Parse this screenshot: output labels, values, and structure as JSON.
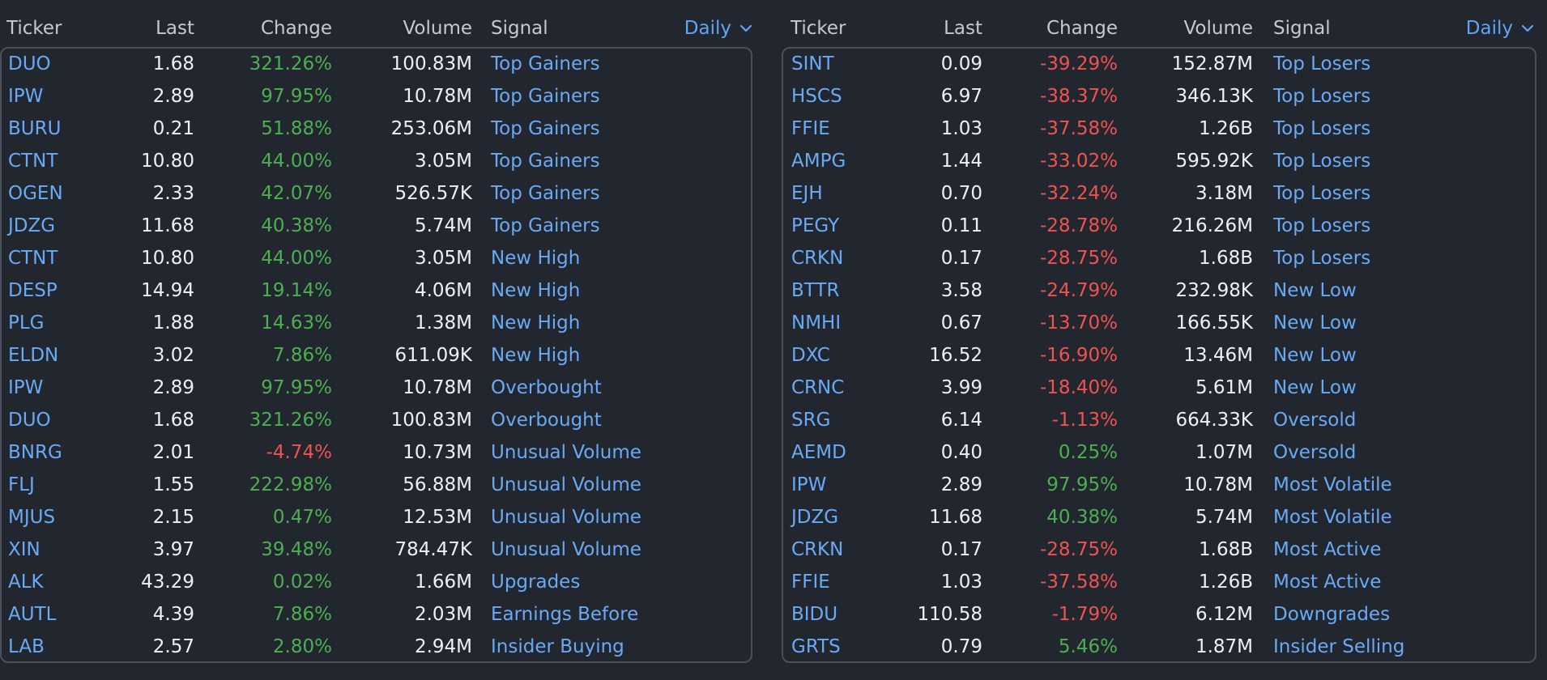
{
  "colors": {
    "background": "#22262f",
    "link": "#6aaaf4",
    "positive": "#4caf50",
    "negative": "#ef5350",
    "header": "#c5c9d1",
    "border": "#4a4f59"
  },
  "left": {
    "headers": {
      "ticker": "Ticker",
      "last": "Last",
      "change": "Change",
      "volume": "Volume",
      "signal": "Signal"
    },
    "period": "Daily",
    "rows": [
      {
        "ticker": "DUO",
        "last": "1.68",
        "change": "321.26%",
        "volume": "100.83M",
        "signal": "Top Gainers",
        "dir": "up"
      },
      {
        "ticker": "IPW",
        "last": "2.89",
        "change": "97.95%",
        "volume": "10.78M",
        "signal": "Top Gainers",
        "dir": "up"
      },
      {
        "ticker": "BURU",
        "last": "0.21",
        "change": "51.88%",
        "volume": "253.06M",
        "signal": "Top Gainers",
        "dir": "up"
      },
      {
        "ticker": "CTNT",
        "last": "10.80",
        "change": "44.00%",
        "volume": "3.05M",
        "signal": "Top Gainers",
        "dir": "up"
      },
      {
        "ticker": "OGEN",
        "last": "2.33",
        "change": "42.07%",
        "volume": "526.57K",
        "signal": "Top Gainers",
        "dir": "up"
      },
      {
        "ticker": "JDZG",
        "last": "11.68",
        "change": "40.38%",
        "volume": "5.74M",
        "signal": "Top Gainers",
        "dir": "up"
      },
      {
        "ticker": "CTNT",
        "last": "10.80",
        "change": "44.00%",
        "volume": "3.05M",
        "signal": "New High",
        "dir": "up"
      },
      {
        "ticker": "DESP",
        "last": "14.94",
        "change": "19.14%",
        "volume": "4.06M",
        "signal": "New High",
        "dir": "up"
      },
      {
        "ticker": "PLG",
        "last": "1.88",
        "change": "14.63%",
        "volume": "1.38M",
        "signal": "New High",
        "dir": "up"
      },
      {
        "ticker": "ELDN",
        "last": "3.02",
        "change": "7.86%",
        "volume": "611.09K",
        "signal": "New High",
        "dir": "up"
      },
      {
        "ticker": "IPW",
        "last": "2.89",
        "change": "97.95%",
        "volume": "10.78M",
        "signal": "Overbought",
        "dir": "up"
      },
      {
        "ticker": "DUO",
        "last": "1.68",
        "change": "321.26%",
        "volume": "100.83M",
        "signal": "Overbought",
        "dir": "up"
      },
      {
        "ticker": "BNRG",
        "last": "2.01",
        "change": "-4.74%",
        "volume": "10.73M",
        "signal": "Unusual Volume",
        "dir": "down"
      },
      {
        "ticker": "FLJ",
        "last": "1.55",
        "change": "222.98%",
        "volume": "56.88M",
        "signal": "Unusual Volume",
        "dir": "up"
      },
      {
        "ticker": "MJUS",
        "last": "2.15",
        "change": "0.47%",
        "volume": "12.53M",
        "signal": "Unusual Volume",
        "dir": "up"
      },
      {
        "ticker": "XIN",
        "last": "3.97",
        "change": "39.48%",
        "volume": "784.47K",
        "signal": "Unusual Volume",
        "dir": "up"
      },
      {
        "ticker": "ALK",
        "last": "43.29",
        "change": "0.02%",
        "volume": "1.66M",
        "signal": "Upgrades",
        "dir": "up"
      },
      {
        "ticker": "AUTL",
        "last": "4.39",
        "change": "7.86%",
        "volume": "2.03M",
        "signal": "Earnings Before",
        "dir": "up"
      },
      {
        "ticker": "LAB",
        "last": "2.57",
        "change": "2.80%",
        "volume": "2.94M",
        "signal": "Insider Buying",
        "dir": "up"
      }
    ]
  },
  "right": {
    "headers": {
      "ticker": "Ticker",
      "last": "Last",
      "change": "Change",
      "volume": "Volume",
      "signal": "Signal"
    },
    "period": "Daily",
    "rows": [
      {
        "ticker": "SINT",
        "last": "0.09",
        "change": "-39.29%",
        "volume": "152.87M",
        "signal": "Top Losers",
        "dir": "down"
      },
      {
        "ticker": "HSCS",
        "last": "6.97",
        "change": "-38.37%",
        "volume": "346.13K",
        "signal": "Top Losers",
        "dir": "down"
      },
      {
        "ticker": "FFIE",
        "last": "1.03",
        "change": "-37.58%",
        "volume": "1.26B",
        "signal": "Top Losers",
        "dir": "down"
      },
      {
        "ticker": "AMPG",
        "last": "1.44",
        "change": "-33.02%",
        "volume": "595.92K",
        "signal": "Top Losers",
        "dir": "down"
      },
      {
        "ticker": "EJH",
        "last": "0.70",
        "change": "-32.24%",
        "volume": "3.18M",
        "signal": "Top Losers",
        "dir": "down"
      },
      {
        "ticker": "PEGY",
        "last": "0.11",
        "change": "-28.78%",
        "volume": "216.26M",
        "signal": "Top Losers",
        "dir": "down"
      },
      {
        "ticker": "CRKN",
        "last": "0.17",
        "change": "-28.75%",
        "volume": "1.68B",
        "signal": "Top Losers",
        "dir": "down"
      },
      {
        "ticker": "BTTR",
        "last": "3.58",
        "change": "-24.79%",
        "volume": "232.98K",
        "signal": "New Low",
        "dir": "down"
      },
      {
        "ticker": "NMHI",
        "last": "0.67",
        "change": "-13.70%",
        "volume": "166.55K",
        "signal": "New Low",
        "dir": "down"
      },
      {
        "ticker": "DXC",
        "last": "16.52",
        "change": "-16.90%",
        "volume": "13.46M",
        "signal": "New Low",
        "dir": "down"
      },
      {
        "ticker": "CRNC",
        "last": "3.99",
        "change": "-18.40%",
        "volume": "5.61M",
        "signal": "New Low",
        "dir": "down"
      },
      {
        "ticker": "SRG",
        "last": "6.14",
        "change": "-1.13%",
        "volume": "664.33K",
        "signal": "Oversold",
        "dir": "down"
      },
      {
        "ticker": "AEMD",
        "last": "0.40",
        "change": "0.25%",
        "volume": "1.07M",
        "signal": "Oversold",
        "dir": "up"
      },
      {
        "ticker": "IPW",
        "last": "2.89",
        "change": "97.95%",
        "volume": "10.78M",
        "signal": "Most Volatile",
        "dir": "up"
      },
      {
        "ticker": "JDZG",
        "last": "11.68",
        "change": "40.38%",
        "volume": "5.74M",
        "signal": "Most Volatile",
        "dir": "up"
      },
      {
        "ticker": "CRKN",
        "last": "0.17",
        "change": "-28.75%",
        "volume": "1.68B",
        "signal": "Most Active",
        "dir": "down"
      },
      {
        "ticker": "FFIE",
        "last": "1.03",
        "change": "-37.58%",
        "volume": "1.26B",
        "signal": "Most Active",
        "dir": "down"
      },
      {
        "ticker": "BIDU",
        "last": "110.58",
        "change": "-1.79%",
        "volume": "6.12M",
        "signal": "Downgrades",
        "dir": "down"
      },
      {
        "ticker": "GRTS",
        "last": "0.79",
        "change": "5.46%",
        "volume": "1.87M",
        "signal": "Insider Selling",
        "dir": "up"
      }
    ]
  }
}
